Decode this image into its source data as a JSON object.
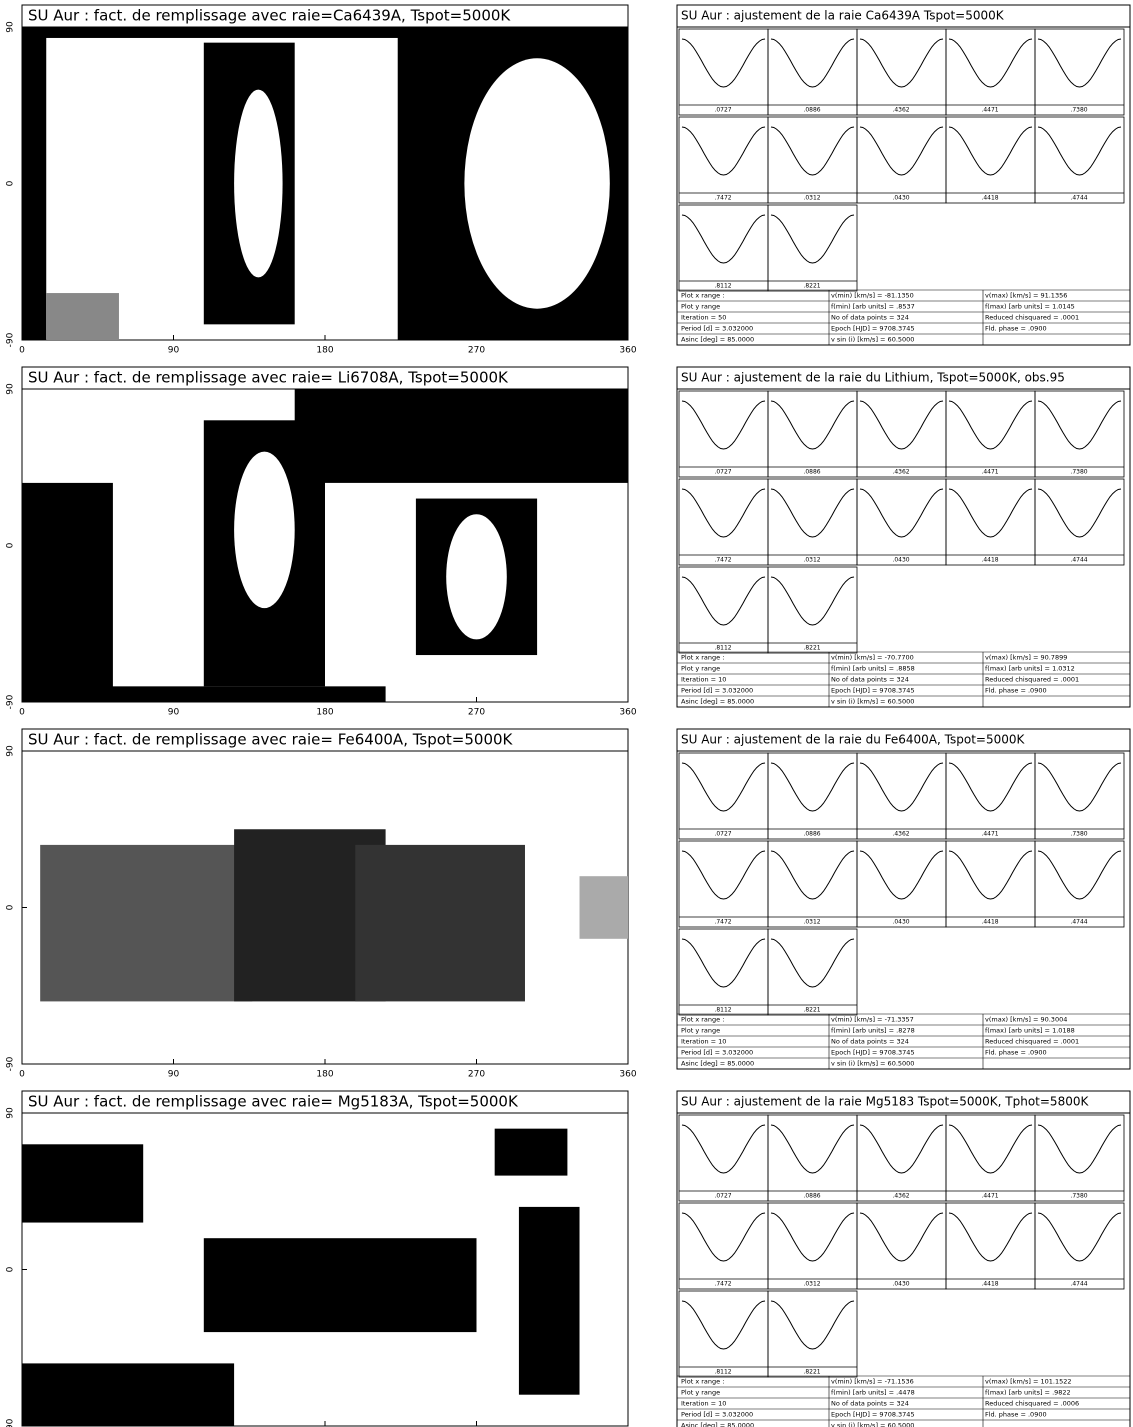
{
  "map_axes": {
    "xticks": [
      0,
      90,
      180,
      270,
      360
    ],
    "yticks": [
      -90,
      0,
      90
    ]
  },
  "phases": [
    ".0727",
    ".0886",
    ".4362",
    ".4471",
    ".7380",
    ".7472",
    ".0312",
    ".0430",
    ".4418",
    ".4744",
    ".8112",
    ".8221"
  ],
  "rows": [
    {
      "map_title": "SU Aur : fact. de remplissage avec raie=Ca6439A, Tspot=5000K",
      "fit_title": "SU Aur : ajustement de la raie Ca6439A Tspot=5000K",
      "table": [
        [
          "Plot x range :",
          "v(min) [km/s] = -81.1350",
          "v(max) [km/s] = 91.1356"
        ],
        [
          "Plot y range",
          "f(min) [arb units] = .8537",
          "f(max) [arb units] = 1.0145"
        ],
        [
          "Iteration = 50",
          "No of data points = 324",
          "Reduced chisquared = .0001"
        ],
        [
          "Period [d] = 3.032000",
          "Epoch [HJD] = 9708.3745",
          "Fld. phase = .0900"
        ],
        [
          "Asinc [deg] = 85.0000",
          "v sin (i) [km/s] = 60.5000"
        ]
      ]
    },
    {
      "map_title": "SU Aur : fact. de remplissage avec raie= Li6708A, Tspot=5000K",
      "fit_title": "SU Aur : ajustement de la raie du Lithium, Tspot=5000K, obs.95",
      "table": [
        [
          "Plot x range :",
          "v(min) [km/s] = -70.7700",
          "v(max) [km/s] = 90.7899"
        ],
        [
          "Plot y range",
          "f(min) [arb units] = .8858",
          "f(max) [arb units] = 1.0312"
        ],
        [
          "Iteration = 10",
          "No of data points = 324",
          "Reduced chisquared = .0001"
        ],
        [
          "Period [d] = 3.032000",
          "Epoch [HJD] = 9708.3745",
          "Fld. phase = .0900"
        ],
        [
          "Asinc [deg] = 85.0000",
          "v sin (i) [km/s] = 60.5000"
        ]
      ]
    },
    {
      "map_title": "SU Aur : fact. de remplissage avec raie= Fe6400A, Tspot=5000K",
      "fit_title": "SU Aur : ajustement de la raie du Fe6400A, Tspot=5000K",
      "table": [
        [
          "Plot x range :",
          "v(min) [km/s] = -71.3357",
          "v(max) [km/s] = 90.3004"
        ],
        [
          "Plot y range",
          "f(min) [arb units] = .8278",
          "f(max) [arb units] = 1.0188"
        ],
        [
          "Iteration = 10",
          "No of data points = 324",
          "Reduced chisquared = .0001"
        ],
        [
          "Period [d] = 3.032000",
          "Epoch [HJD] = 9708.3745",
          "Fld. phase = .0900"
        ],
        [
          "Asinc [deg] = 85.0000",
          "v sin (i) [km/s] = 60.5000"
        ]
      ]
    },
    {
      "map_title": "SU Aur : fact. de remplissage avec raie= Mg5183A, Tspot=5000K",
      "fit_title": "SU Aur : ajustement de la raie Mg5183 Tspot=5000K, Tphot=5800K",
      "table": [
        [
          "Plot x range :",
          "v(min) [km/s] = -71.1536",
          "v(max) [km/s] = 101.1522"
        ],
        [
          "Plot y range",
          "f(min) [arb units] = .4478",
          "f(max) [arb units] = .9822"
        ],
        [
          "Iteration = 10",
          "No of data points = 324",
          "Reduced chisquared = .0006"
        ],
        [
          "Period [d] = 3.032000",
          "Epoch [HJD] = 9708.3745",
          "Fld. phase = .0900"
        ],
        [
          "Asinc [deg] = 85.0000",
          "v sin (i) [km/s] = 60.5000"
        ]
      ]
    }
  ]
}
